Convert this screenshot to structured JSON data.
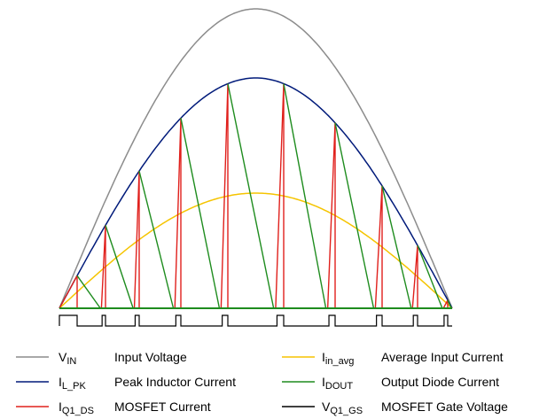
{
  "waveforms": {
    "colors": {
      "input_voltage": "#8c8c8c",
      "peak_inductor": "#001a7a",
      "avg_input": "#f5c400",
      "diode": "#1e8c1e",
      "mosfet": "#e0201c",
      "gate": "#000000"
    },
    "switching_cycles": 9
  },
  "legend": {
    "items": [
      {
        "symbol": "V",
        "sub": "IN",
        "desc": "Input Voltage",
        "color": "#8c8c8c"
      },
      {
        "symbol": "I",
        "sub": "in_avg",
        "desc": "Average Input Current",
        "color": "#f5c400"
      },
      {
        "symbol": "I",
        "sub": "L_PK",
        "desc": "Peak Inductor Current",
        "color": "#001a7a"
      },
      {
        "symbol": "I",
        "sub": "DOUT",
        "desc": "Output Diode Current",
        "color": "#1e8c1e"
      },
      {
        "symbol": "I",
        "sub": "Q1_DS",
        "desc": "MOSFET Current",
        "color": "#e0201c"
      },
      {
        "symbol": "V",
        "sub": "Q1_GS",
        "desc": "MOSFET Gate Voltage",
        "color": "#000000"
      }
    ]
  }
}
